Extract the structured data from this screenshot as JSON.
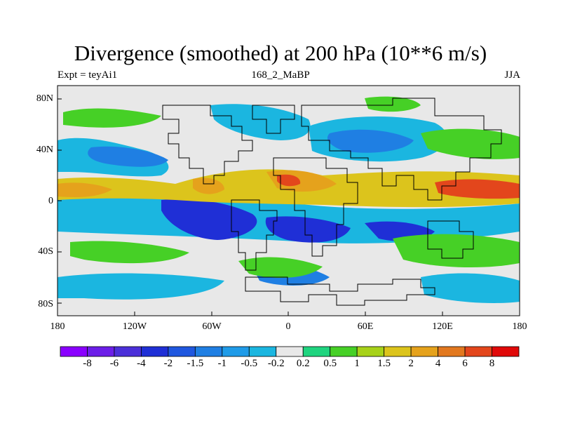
{
  "title": "Divergence (smoothed) at 200 hPa (10**6 m/s)",
  "subtitle_left": "Expt = teyAi1",
  "subtitle_center": "168_2_MaBP",
  "subtitle_right": "JJA",
  "axes": {
    "lat_labels": [
      "80N",
      "40N",
      "0",
      "40S",
      "80S"
    ],
    "lon_labels": [
      "180",
      "120W",
      "60W",
      "0",
      "60E",
      "120E",
      "180"
    ]
  },
  "colorbar": {
    "levels": [
      "-8",
      "-6",
      "-4",
      "-2",
      "-1.5",
      "-1",
      "-0.5",
      "-0.2",
      "0.2",
      "0.5",
      "1",
      "1.5",
      "2",
      "4",
      "6",
      "8"
    ],
    "colors": [
      "#8a00ff",
      "#6c1ee8",
      "#4b2fd9",
      "#1f2fd6",
      "#1f57df",
      "#1f7fe3",
      "#1f9be8",
      "#1bb6e0",
      "#e8e8e8",
      "#1fd47f",
      "#46d026",
      "#a7d219",
      "#dcc41c",
      "#e5a21c",
      "#e2781f",
      "#e3461c",
      "#e00909"
    ]
  },
  "map": {
    "background": "#e8e8e8",
    "color_neg_strong": "#1f2fd6",
    "color_neg_mid": "#1f7fe3",
    "color_neg_weak": "#1bb6e0",
    "color_pos_weak": "#46d026",
    "color_pos_mid": "#dcc41c",
    "color_pos_strong": "#e5a21c",
    "color_pos_peak": "#e3461c"
  }
}
